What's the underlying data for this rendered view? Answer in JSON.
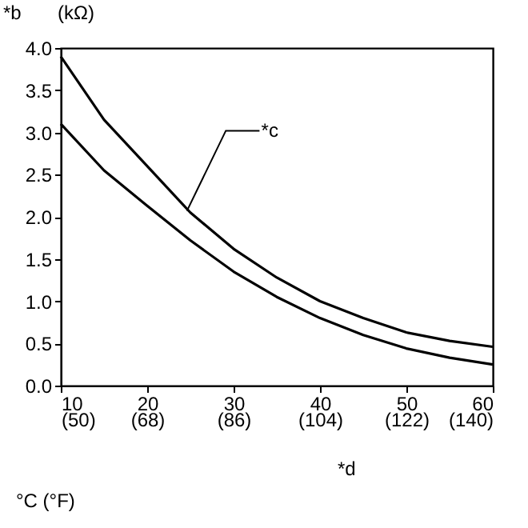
{
  "chart_data": {
    "type": "line",
    "ylabel": "*b",
    "xlabel": "*d",
    "annotations": [
      "(kΩ)",
      {
        "text": "*c",
        "x": 24.6,
        "y": 2.07
      },
      "°C (°F)"
    ],
    "x": [
      10,
      15,
      20,
      25,
      30,
      35,
      40,
      45,
      50,
      55,
      60
    ],
    "series": [
      {
        "color": "#000000",
        "values": [
          3.9,
          3.15,
          2.6,
          2.05,
          1.62,
          1.28,
          1.0,
          0.8,
          0.63,
          0.53,
          0.46
        ]
      },
      {
        "color": "#000000",
        "values": [
          3.1,
          2.55,
          2.13,
          1.72,
          1.35,
          1.05,
          0.8,
          0.6,
          0.44,
          0.33,
          0.25
        ]
      }
    ],
    "xlim": [
      10,
      60
    ],
    "xticks": [
      10,
      20,
      30,
      40,
      50,
      60
    ],
    "x2lim": [
      50,
      140
    ],
    "x2ticks": [
      {
        "value": 50,
        "label": "(50)"
      },
      {
        "value": 68,
        "label": "(68)"
      },
      {
        "value": 86,
        "label": "(86)"
      },
      {
        "value": 104,
        "label": "(104)"
      },
      {
        "value": 122,
        "label": "(122)"
      },
      {
        "value": 140,
        "label": "(140)"
      }
    ],
    "ylim": [
      0,
      4
    ],
    "yticks": [
      {
        "value": 0,
        "label": "0.0"
      },
      {
        "value": 0.5,
        "label": "0.5"
      },
      {
        "value": 1,
        "label": "1.0"
      },
      {
        "value": 1.5,
        "label": "1.5"
      },
      {
        "value": 2,
        "label": "2.0"
      },
      {
        "value": 2.5,
        "label": "2.5"
      },
      {
        "value": 3,
        "label": "3.0"
      },
      {
        "value": 3.5,
        "label": "3.5"
      },
      {
        "value": 4,
        "label": "4.0"
      }
    ],
    "grid": false,
    "marker": "none",
    "line_style": "solid"
  }
}
